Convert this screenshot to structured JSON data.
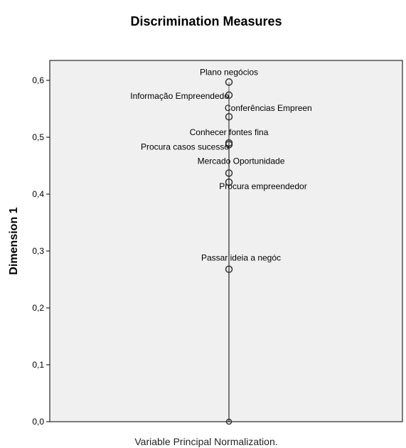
{
  "chart_data": {
    "type": "scatter",
    "title": "Discrimination Measures",
    "ylabel": "Dimension 1",
    "xlabel": "",
    "footer": "Variable Principal Normalization.",
    "ylim": [
      0.0,
      0.65
    ],
    "yticks": [
      0.0,
      0.1,
      0.2,
      0.3,
      0.4,
      0.5,
      0.6
    ],
    "ytick_labels": [
      "0,0",
      "0,1",
      "0,2",
      "0,3",
      "0,4",
      "0,5",
      "0,6"
    ],
    "grid": false,
    "legend": "none",
    "points": [
      {
        "label": "Plano negócios",
        "y": 0.597
      },
      {
        "label": "Informação Empreendedo",
        "y": 0.574
      },
      {
        "label": "Conferências Empreen",
        "y": 0.536
      },
      {
        "label": "Conhecer fontes fina",
        "y": 0.49
      },
      {
        "label": "Procura casos sucesso",
        "y": 0.487
      },
      {
        "label": "Mercado Oportunidade",
        "y": 0.437
      },
      {
        "label": "Procura empreendedor",
        "y": 0.421
      },
      {
        "label": "Passar ideia a negóc",
        "y": 0.268
      }
    ],
    "colors": {
      "plot_background": "#f0f0f0",
      "marker_stroke": "#333333",
      "line": "#000000"
    }
  }
}
